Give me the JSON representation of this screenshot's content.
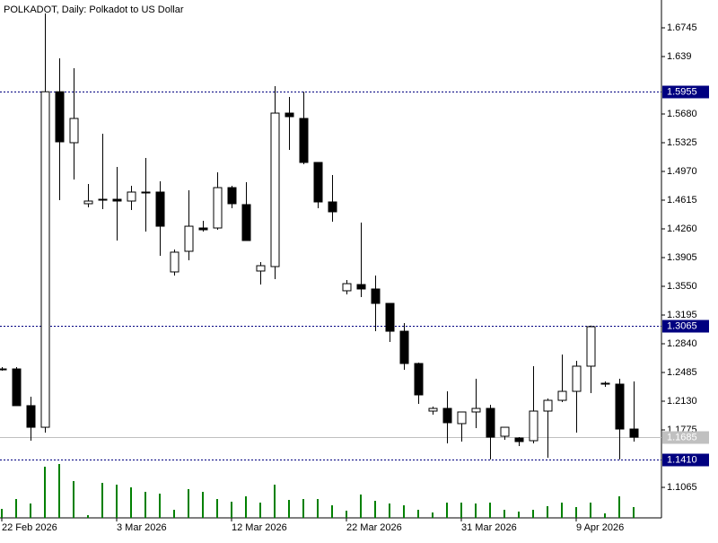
{
  "chart_data": {
    "type": "candlestick",
    "title": "POLKADOT, Daily:  Polkadot to US Dollar",
    "categories": [
      "22 Feb 2026",
      null,
      null,
      null,
      null,
      null,
      null,
      null,
      "3 Mar 2026",
      null,
      null,
      null,
      null,
      null,
      null,
      null,
      "12 Mar 2026",
      null,
      null,
      null,
      null,
      null,
      null,
      null,
      "22 Mar 2026",
      null,
      null,
      null,
      null,
      null,
      null,
      null,
      "31 Mar 2026",
      null,
      null,
      null,
      null,
      null,
      null,
      null,
      "9 Apr 2026",
      null,
      null,
      null,
      null
    ],
    "open": [
      1.2529,
      1.2529,
      1.2075,
      1.1808,
      1.5955,
      1.5325,
      1.4571,
      1.4626,
      1.4626,
      1.4604,
      1.4715,
      1.4715,
      1.3728,
      1.3983,
      1.4271,
      1.4271,
      1.477,
      1.456,
      1.3739,
      1.3794,
      1.5691,
      1.5625,
      1.5081,
      1.4593,
      1.3495,
      1.3572,
      1.3517,
      1.3339,
      1.2995,
      1.2596,
      1.2008,
      1.2041,
      1.1853,
      1.1997,
      1.2041,
      1.1697,
      1.1675,
      1.1642,
      1.2008,
      1.2141,
      1.2252,
      1.2563,
      1.2352,
      1.2341,
      1.1786
    ],
    "high": [
      1.2552,
      1.2552,
      1.2185,
      1.6923,
      1.6368,
      1.6246,
      1.4815,
      1.5436,
      1.5026,
      1.4793,
      1.5136,
      1.4848,
      1.4005,
      1.4737,
      1.436,
      1.4959,
      1.4793,
      1.4837,
      1.385,
      1.6024,
      1.5891,
      1.5955,
      1.5081,
      1.4926,
      1.3628,
      1.4338,
      1.3683,
      1.3339,
      1.3095,
      1.2607,
      1.2063,
      1.2252,
      1.1997,
      1.2407,
      1.2086,
      1.1808,
      1.1686,
      1.2563,
      1.2163,
      1.2707,
      1.2629,
      1.3065,
      1.2374,
      1.2407,
      1.2374
    ],
    "low": [
      1.2507,
      1.2075,
      1.1642,
      1.1742,
      1.4615,
      1.487,
      1.4526,
      1.4504,
      1.4116,
      1.4493,
      1.4227,
      1.3927,
      1.3683,
      1.3872,
      1.4227,
      1.4249,
      1.4515,
      1.4116,
      1.3572,
      1.3639,
      1.5236,
      1.5059,
      1.4515,
      1.4349,
      1.345,
      1.3417,
      1.2995,
      1.2862,
      1.2518,
      1.2097,
      1.1964,
      1.1609,
      1.1631,
      1.1797,
      1.141,
      1.1653,
      1.1575,
      1.1609,
      1.1431,
      1.2119,
      1.1742,
      1.223,
      1.2307,
      1.141,
      1.1631
    ],
    "close": [
      1.2529,
      1.2075,
      1.1808,
      1.5955,
      1.5336,
      1.5625,
      1.4604,
      1.4626,
      1.4604,
      1.4715,
      1.4715,
      1.4293,
      1.3972,
      1.4293,
      1.4249,
      1.477,
      1.4571,
      1.4116,
      1.3805,
      1.5691,
      1.5647,
      1.5081,
      1.4593,
      1.4471,
      1.3583,
      1.3517,
      1.3339,
      1.2995,
      1.2596,
      1.2208,
      1.2041,
      1.1864,
      1.1997,
      1.2041,
      1.1686,
      1.1808,
      1.1631,
      1.2008,
      1.2141,
      1.2252,
      1.2563,
      1.3051,
      1.2352,
      1.1786,
      1.1685
    ],
    "volume": [
      10,
      21,
      16,
      57,
      60,
      41,
      3,
      39,
      37,
      34,
      29,
      27,
      9,
      32,
      29,
      21,
      18,
      24,
      17,
      37,
      20,
      21,
      21,
      14,
      8,
      26,
      19,
      16,
      14,
      9,
      6,
      17,
      17,
      16,
      17,
      9,
      7,
      9,
      13,
      17,
      12,
      17,
      5,
      24,
      12
    ],
    "volume_color": "#008000",
    "volume_lim": [
      0,
      70
    ],
    "bull_color": "#ffffff",
    "bear_color": "#000000",
    "ylim": [
      1.0688,
      1.7089
    ],
    "yticks": [
      1.6745,
      1.639,
      {
        "value": 1.568,
        "label": "1.5680"
      },
      1.5325,
      {
        "value": 1.497,
        "label": "1.4970"
      },
      1.4615,
      {
        "value": 1.426,
        "label": "1.4260"
      },
      1.3905,
      {
        "value": 1.355,
        "label": "1.3550"
      },
      1.3195,
      {
        "value": 1.284,
        "label": "1.2840"
      },
      1.2485,
      {
        "value": 1.213,
        "label": "1.2130"
      },
      1.1775,
      1.1065
    ],
    "levels": [
      1.5955,
      1.3065,
      {
        "value": 1.141,
        "label": "1.1410"
      }
    ],
    "level_color": "#000080",
    "last_price": 1.1685,
    "last_price_color": "#c0c0c0"
  }
}
